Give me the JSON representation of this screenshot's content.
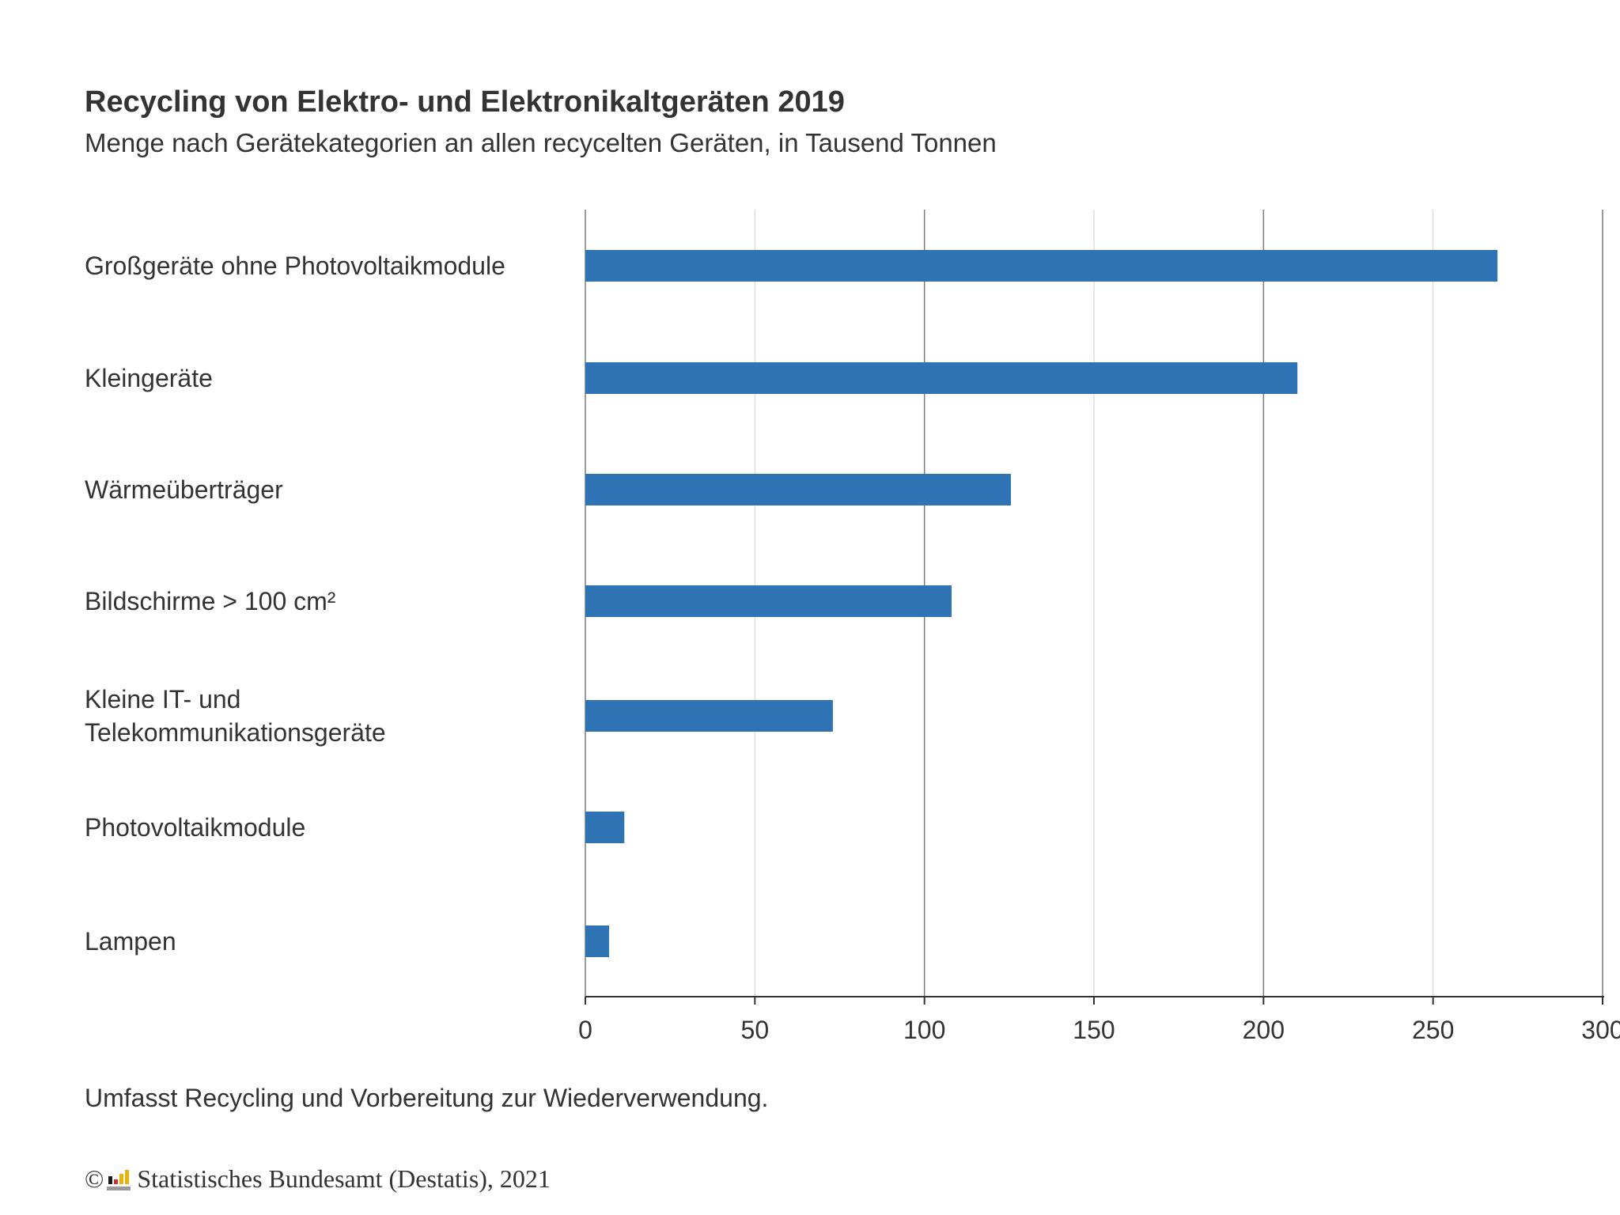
{
  "header": {
    "title": "Recycling von Elektro- und Elektronikaltgeräten 2019",
    "subtitle": "Menge nach Gerätekategorien an allen recycelten Geräten, in Tausend Tonnen"
  },
  "footer": {
    "note": "Umfasst Recycling und Vorbereitung zur Wiederverwendung.",
    "copyright_symbol": "©",
    "source": "Statistisches Bundesamt (Destatis), 2021",
    "logo_icon": "destatis-logo-icon"
  },
  "colors": {
    "bar": "#2e74b5",
    "major_grid": "#7a7a7a",
    "minor_grid": "#d9d9d9",
    "axis": "#333333",
    "text": "#333333"
  },
  "chart_data": {
    "type": "bar",
    "orientation": "horizontal",
    "categories": [
      [
        "Großgeräte ohne Photovoltaikmodule"
      ],
      [
        "Kleingeräte"
      ],
      [
        "Wärmeüberträger"
      ],
      [
        "Bildschirme > 100 cm²"
      ],
      [
        "Kleine IT- und",
        "Telekommunikationsgeräte"
      ],
      [
        "Photovoltaikmodule"
      ],
      [
        "Lampen"
      ]
    ],
    "values": [
      269,
      210,
      125.5,
      108,
      73,
      11.5,
      7
    ],
    "xlim": [
      0,
      300
    ],
    "xticks": [
      0,
      50,
      100,
      150,
      200,
      250,
      300
    ],
    "grid": true,
    "title": "Recycling von Elektro- und Elektronikaltgeräten 2019",
    "subtitle": "Menge nach Gerätekategorien an allen recycelten Geräten, in Tausend Tonnen",
    "xlabel": "",
    "ylabel": ""
  }
}
